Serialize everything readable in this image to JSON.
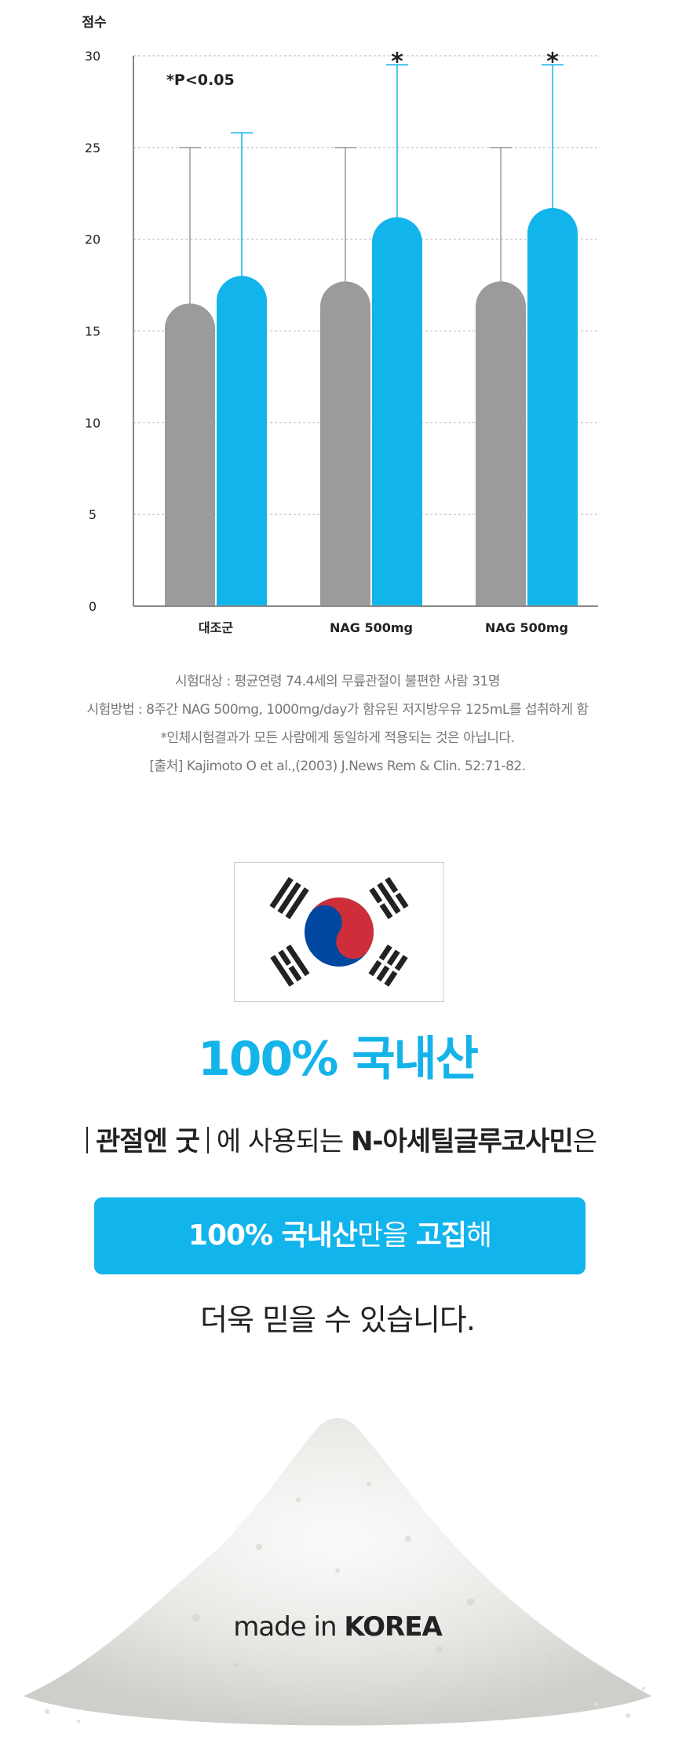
{
  "chart_data": {
    "type": "bar",
    "ylabel": "점수",
    "ylim": [
      0,
      30
    ],
    "yticks": [
      0,
      5,
      10,
      15,
      20,
      25,
      30
    ],
    "categories": [
      "대조군",
      "NAG 500mg",
      "NAG 500mg"
    ],
    "series": [
      {
        "values": [
          16.5,
          17.7,
          17.7
        ],
        "errors": [
          8.5,
          7.3,
          7.3
        ],
        "color": "#9b9b9b"
      },
      {
        "values": [
          18.0,
          21.2,
          21.7
        ],
        "errors": [
          7.8,
          8.3,
          7.8
        ],
        "color": "#12b4ec"
      }
    ],
    "significance_marks": [
      "",
      "*",
      "*"
    ],
    "annotation": "*P<0.05",
    "grid": true
  },
  "notes": [
    "시험대상 : 평균연령 74.4세의 무릎관절이 불편한 사람 31명",
    "시험방법 : 8주간 NAG 500mg, 1000mg/day가 함유된 저지방우유 125mL를 섭취하게 함",
    "*인체시험결과가 모든 사람에게 동일하게 적용되는 것은 아닙니다.",
    "[출처] Kajimoto O et al.,(2003) J.News Rem & Clin. 52:71-82."
  ],
  "headline": "100% 국내산",
  "sentence": {
    "brand": "관절엔 굿",
    "middle": "에 사용되는 ",
    "ingredient": "N-아세틸글루코사민",
    "end": "은"
  },
  "blue_box": {
    "bold1": "100% 국내산",
    "mid": "만을 ",
    "bold2": "고집",
    "end": "해"
  },
  "closing": "더욱 믿을 수 있습니다.",
  "made_in": {
    "prefix": "made in ",
    "country": "KOREA"
  },
  "colors": {
    "accent": "#12b4ec",
    "gray_bar": "#9b9b9b",
    "flag_red": "#cd2e3a",
    "flag_blue": "#0047a0"
  }
}
